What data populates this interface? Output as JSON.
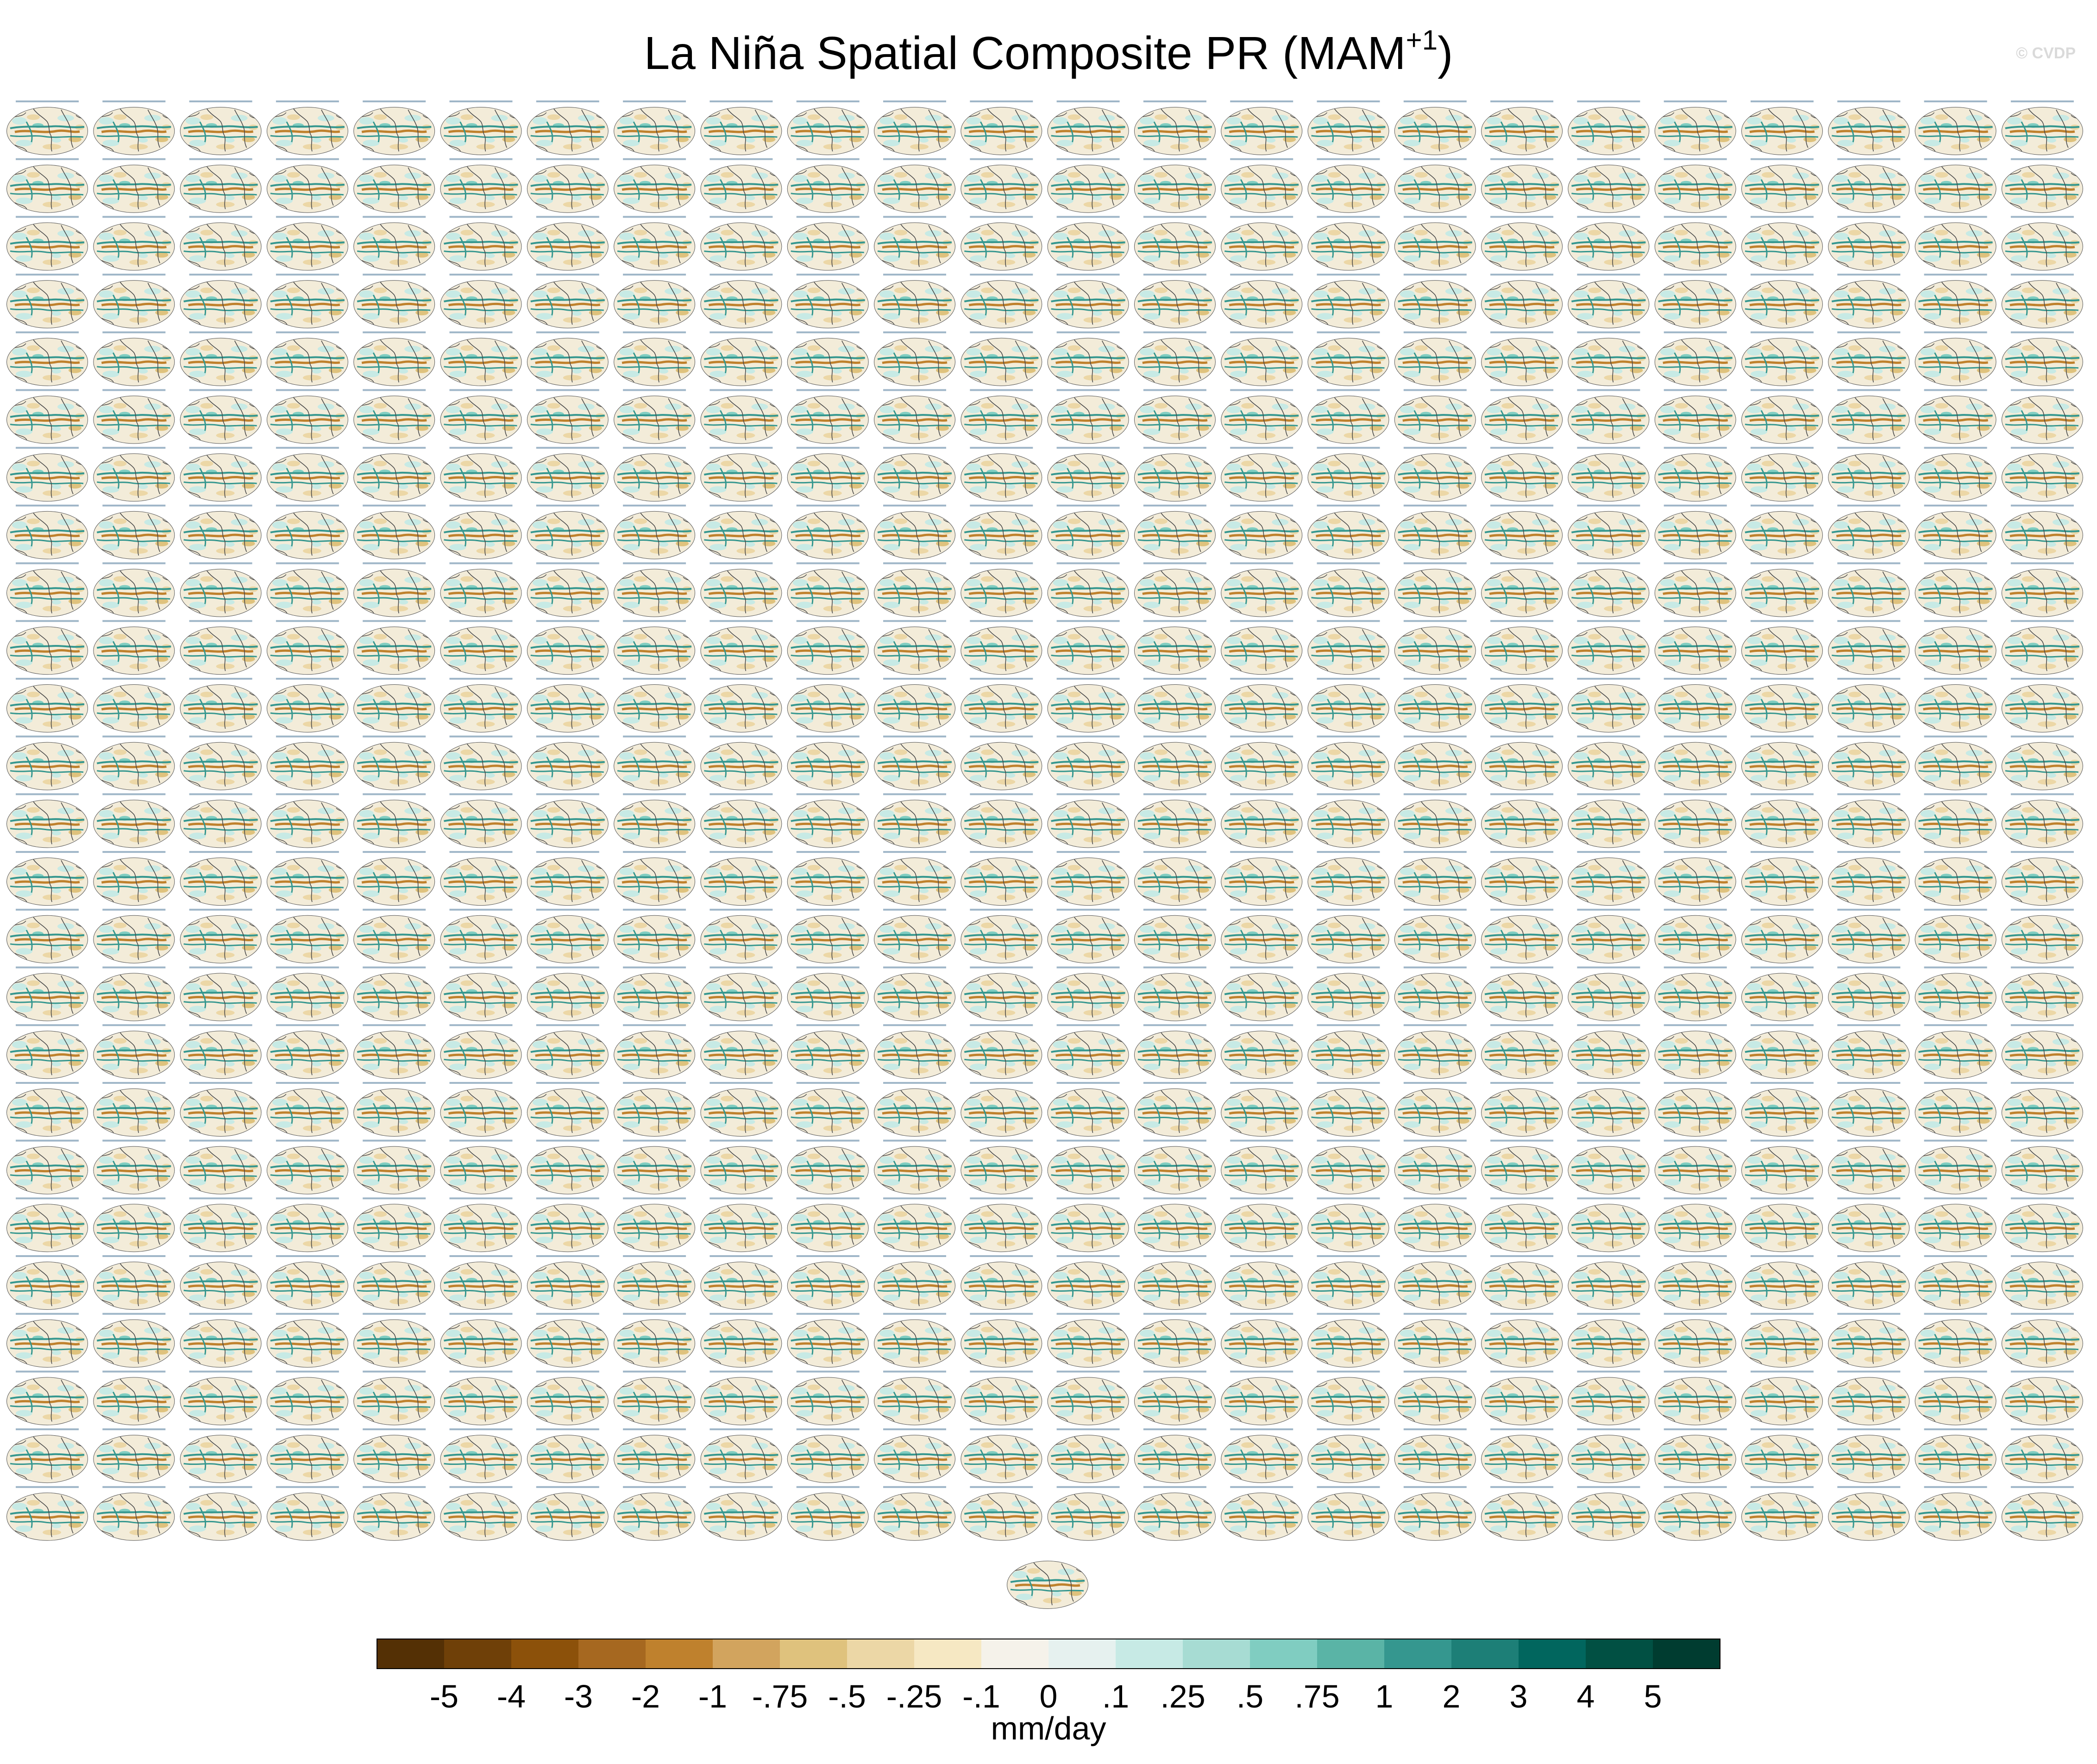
{
  "figure": {
    "title_main": "La Niña Spatial Composite PR (MAM",
    "title_sup": "+1",
    "title_close": ")",
    "watermark": "© CVDP"
  },
  "chart_data": {
    "type": "heatmap",
    "title": "La Niña Spatial Composite PR (MAM+1)",
    "panel_grid": {
      "rows": 25,
      "columns": 24,
      "extra_panels_below": 1
    },
    "projection": "global-elliptical",
    "colorbar": {
      "units": "mm/day",
      "ticks": [
        "-5",
        "-4",
        "-3",
        "-2",
        "-1",
        "-.75",
        "-.5",
        "-.25",
        "-.1",
        "0",
        ".1",
        ".25",
        ".5",
        ".75",
        "1",
        "2",
        "3",
        "4",
        "5"
      ],
      "colors": [
        "#543005",
        "#6f4008",
        "#8c510a",
        "#a66820",
        "#bf812d",
        "#d2a45e",
        "#dfc27d",
        "#ecd7a6",
        "#f6e8c3",
        "#f5f2ea",
        "#e6f1ef",
        "#c7eae5",
        "#a7dcd3",
        "#80cdc1",
        "#5ab4a6",
        "#35978f",
        "#1d7f77",
        "#01665e",
        "#015043",
        "#003c30"
      ]
    }
  },
  "palette": {
    "land_outline": "#4a4a4a",
    "ocean_base": "#f3ecd9",
    "wet": "#35978f",
    "dry": "#bf812d"
  }
}
